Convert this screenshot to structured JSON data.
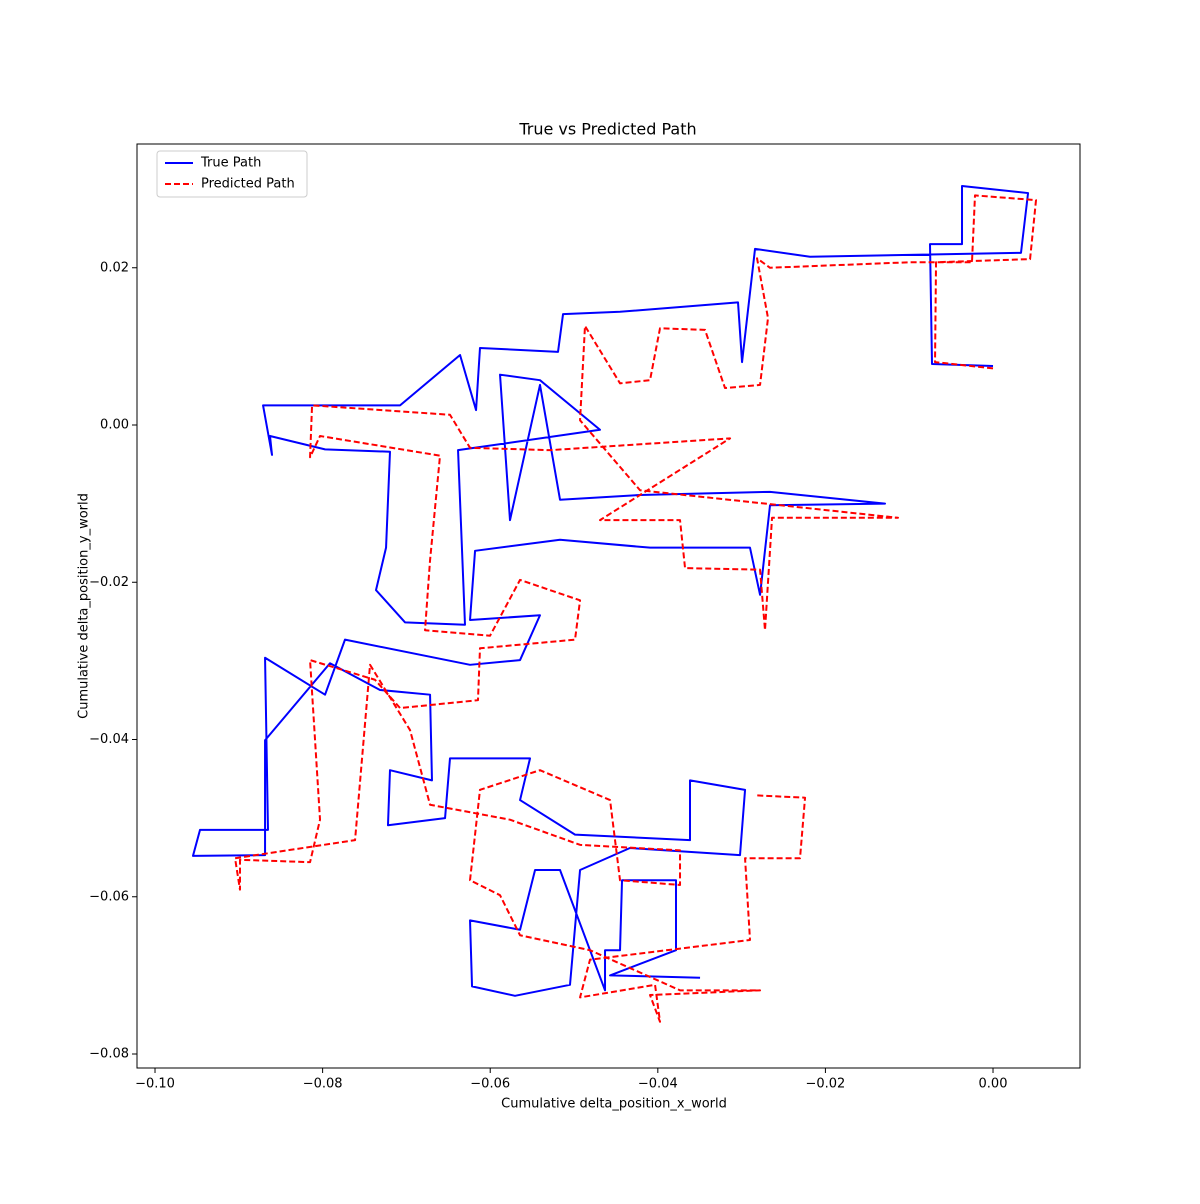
{
  "chart_data": {
    "type": "line",
    "title": "True vs Predicted Path",
    "x_label": "Cumulative delta_position_x_world",
    "y_label": "Cumulative delta_position_y_world",
    "xlim": [
      -0.10215,
      0.01038
    ],
    "ylim": [
      -0.08178,
      0.03574
    ],
    "xticks": [
      {
        "value": -0.1,
        "label": "−0.10"
      },
      {
        "value": -0.08,
        "label": "−0.08"
      },
      {
        "value": -0.06,
        "label": "−0.06"
      },
      {
        "value": -0.04,
        "label": "−0.04"
      },
      {
        "value": -0.02,
        "label": "−0.02"
      },
      {
        "value": 0,
        "label": "0.00"
      }
    ],
    "yticks": [
      {
        "value": -0.08,
        "label": "−0.08"
      },
      {
        "value": -0.06,
        "label": "−0.06"
      },
      {
        "value": -0.04,
        "label": "−0.04"
      },
      {
        "value": -0.02,
        "label": "−0.02"
      },
      {
        "value": 0,
        "label": "0.00"
      },
      {
        "value": 0.02,
        "label": "0.02"
      }
    ],
    "legend": "upper left",
    "series": [
      {
        "name": "True Path",
        "color": "#0000ff",
        "dash": "solid",
        "x": [
          0,
          -0.00728,
          -0.00752,
          -0.0037,
          -0.0037,
          0.00418,
          0.00334,
          -0.02184,
          -0.0284,
          -0.02995,
          -0.03043,
          -0.04451,
          -0.05131,
          -0.05191,
          -0.06122,
          -0.06169,
          -0.0636,
          -0.07076,
          -0.08711,
          -0.08604,
          -0.08628,
          -0.07971,
          -0.07196,
          -0.07243,
          -0.07363,
          -0.07017,
          -0.06301,
          -0.06384,
          -0.0469,
          -0.05406,
          -0.05883,
          -0.05764,
          -0.05406,
          -0.05167,
          -0.04212,
          -0.02661,
          -0.01289,
          -0.02661,
          -0.0278,
          -0.029,
          -0.04093,
          -0.05167,
          -0.06181,
          -0.06241,
          -0.05406,
          -0.05644,
          -0.06241,
          -0.07733,
          -0.07971,
          -0.08687,
          -0.08652,
          -0.09463,
          -0.09547,
          -0.08687,
          -0.08687,
          -0.07912,
          -0.07315,
          -0.06718,
          -0.06695,
          -0.07196,
          -0.0722,
          -0.06539,
          -0.0648,
          -0.05525,
          -0.05644,
          -0.04988,
          -0.03616,
          -0.03616,
          -0.02959,
          -0.03019,
          -0.04332,
          -0.04928,
          -0.05048,
          -0.05704,
          -0.06217,
          -0.06241,
          -0.05644,
          -0.05465,
          -0.05167,
          -0.0463,
          -0.0463,
          -0.04451,
          -0.04427,
          -0.03783,
          -0.03783,
          -0.0457,
          -0.03496
        ],
        "values": [
          0.0075,
          0.00776,
          0.023,
          0.023,
          0.0304,
          0.0295,
          0.0219,
          0.0214,
          0.0224,
          0.008,
          0.0156,
          0.0144,
          0.0141,
          0.0093,
          0.0098,
          0.0019,
          0.0089,
          0.0025,
          0.0025,
          -0.0038,
          -0.0014,
          -0.0031,
          -0.0034,
          -0.0156,
          -0.021,
          -0.0251,
          -0.0254,
          -0.0032,
          -0.0006,
          0.0057,
          0.0064,
          -0.0121,
          0.0051,
          -0.0095,
          -0.0089,
          -0.0085,
          -0.01,
          -0.0102,
          -0.0216,
          -0.0156,
          -0.0156,
          -0.0146,
          -0.016,
          -0.0248,
          -0.0242,
          -0.0299,
          -0.0305,
          -0.0273,
          -0.0343,
          -0.0296,
          -0.0515,
          -0.0515,
          -0.0548,
          -0.0547,
          -0.0401,
          -0.0303,
          -0.0337,
          -0.0343,
          -0.0452,
          -0.0439,
          -0.0509,
          -0.05,
          -0.0424,
          -0.0424,
          -0.0477,
          -0.0521,
          -0.0528,
          -0.0452,
          -0.0464,
          -0.0547,
          -0.0538,
          -0.0566,
          -0.0712,
          -0.0726,
          -0.0714,
          -0.063,
          -0.0642,
          -0.0566,
          -0.0566,
          -0.0719,
          -0.0668,
          -0.0668,
          -0.0579,
          -0.0579,
          -0.0668,
          -0.07,
          -0.0703
        ]
      },
      {
        "name": "Predicted Path",
        "color": "#ff0000",
        "dash": "dashed",
        "x": [
          0,
          -0.00692,
          -0.0068,
          0.00442,
          0.00513,
          -0.00215,
          -0.00251,
          -0.0099,
          -0.02661,
          -0.02816,
          -0.02685,
          -0.0278,
          -0.03198,
          -0.03437,
          -0.03974,
          -0.04093,
          -0.04451,
          -0.04869,
          -0.04928,
          -0.04212,
          -0.01134,
          -0.02637,
          -0.02721,
          -0.0278,
          -0.03675,
          -0.03735,
          -0.0469,
          -0.03138,
          -0.05286,
          -0.06241,
          -0.0648,
          -0.08126,
          -0.0815,
          -0.08031,
          -0.06599,
          -0.06718,
          -0.06778,
          -0.06002,
          -0.05644,
          -0.04928,
          -0.04988,
          -0.06122,
          -0.06146,
          -0.07076,
          -0.07375,
          -0.0815,
          -0.08031,
          -0.0815,
          -0.08986,
          -0.08986,
          -0.09045,
          -0.07613,
          -0.07434,
          -0.06957,
          -0.06718,
          -0.05764,
          -0.04928,
          -0.03735,
          -0.03735,
          -0.04451,
          -0.0457,
          -0.05406,
          -0.06122,
          -0.06241,
          -0.05883,
          -0.05644,
          -0.04809,
          -0.03735,
          -0.0278,
          -0.04093,
          -0.03974,
          -0.04033,
          -0.04928,
          -0.04809,
          -0.029,
          -0.02959,
          -0.02303,
          -0.02243,
          -0.0284
        ],
        "values": [
          0.0072,
          0.008,
          0.0207,
          0.0211,
          0.0286,
          0.0292,
          0.0207,
          0.0207,
          0.02,
          0.0212,
          0.0136,
          0.0051,
          0.0047,
          0.0121,
          0.0123,
          0.0057,
          0.0053,
          0.0126,
          0.0006,
          -0.0083,
          -0.0118,
          -0.0118,
          -0.0261,
          -0.0184,
          -0.0182,
          -0.0121,
          -0.0121,
          -0.0017,
          -0.0032,
          -0.0029,
          0.0013,
          0.0025,
          -0.0041,
          -0.0014,
          -0.0039,
          -0.0172,
          -0.0261,
          -0.0268,
          -0.0197,
          -0.0223,
          -0.0273,
          -0.0284,
          -0.035,
          -0.036,
          -0.0324,
          -0.0299,
          -0.0502,
          -0.0556,
          -0.0553,
          -0.0591,
          -0.0551,
          -0.0528,
          -0.0305,
          -0.0388,
          -0.0483,
          -0.0502,
          -0.0534,
          -0.0541,
          -0.0585,
          -0.0579,
          -0.0477,
          -0.0439,
          -0.0464,
          -0.0579,
          -0.0598,
          -0.0649,
          -0.0668,
          -0.0719,
          -0.0719,
          -0.0725,
          -0.0759,
          -0.0712,
          -0.0728,
          -0.068,
          -0.0655,
          -0.0551,
          -0.0551,
          -0.0474,
          -0.0471
        ]
      }
    ]
  }
}
